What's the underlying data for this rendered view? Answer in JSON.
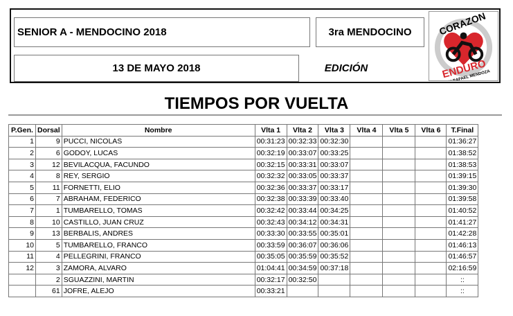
{
  "header": {
    "event": "SENIOR A - MENDOCINO 2018",
    "round": "3ra MENDOCINO",
    "date": "13 DE MAYO 2018",
    "edition_label": "EDICIÓN",
    "logo_text": "CORAZON ENDURO SAN RAFAEL MENDOZA"
  },
  "title": "TIEMPOS POR VUELTA",
  "table": {
    "columns": [
      "P.Gen.",
      "Dorsal",
      "Nombre",
      "Vlta 1",
      "Vlta 2",
      "Vlta 3",
      "Vlta 4",
      "Vlta 5",
      "Vlta 6",
      "T.Final"
    ],
    "rows": [
      [
        "1",
        "9",
        "PUCCI, NICOLAS",
        "00:31:23",
        "00:32:33",
        "00:32:30",
        "",
        "",
        "",
        "01:36:27"
      ],
      [
        "2",
        "6",
        "GODOY, LUCAS",
        "00:32:19",
        "00:33:07",
        "00:33:25",
        "",
        "",
        "",
        "01:38:52"
      ],
      [
        "3",
        "12",
        "BEVILACQUA, FACUNDO",
        "00:32:15",
        "00:33:31",
        "00:33:07",
        "",
        "",
        "",
        "01:38:53"
      ],
      [
        "4",
        "8",
        "REY, SERGIO",
        "00:32:32",
        "00:33:05",
        "00:33:37",
        "",
        "",
        "",
        "01:39:15"
      ],
      [
        "5",
        "11",
        "FORNETTI, ELIO",
        "00:32:36",
        "00:33:37",
        "00:33:17",
        "",
        "",
        "",
        "01:39:30"
      ],
      [
        "6",
        "7",
        "ABRAHAM, FEDERICO",
        "00:32:38",
        "00:33:39",
        "00:33:40",
        "",
        "",
        "",
        "01:39:58"
      ],
      [
        "7",
        "1",
        "TUMBARELLO, TOMAS",
        "00:32:42",
        "00:33:44",
        "00:34:25",
        "",
        "",
        "",
        "01:40:52"
      ],
      [
        "8",
        "10",
        "CASTILLO, JUAN CRUZ",
        "00:32:43",
        "00:34:12",
        "00:34:31",
        "",
        "",
        "",
        "01:41:27"
      ],
      [
        "9",
        "13",
        "BERBALIS, ANDRES",
        "00:33:30",
        "00:33:55",
        "00:35:01",
        "",
        "",
        "",
        "01:42:28"
      ],
      [
        "10",
        "5",
        "TUMBARELLO, FRANCO",
        "00:33:59",
        "00:36:07",
        "00:36:06",
        "",
        "",
        "",
        "01:46:13"
      ],
      [
        "11",
        "4",
        "PELLEGRINI, FRANCO",
        "00:35:05",
        "00:35:59",
        "00:35:52",
        "",
        "",
        "",
        "01:46:57"
      ],
      [
        "12",
        "3",
        "ZAMORA, ALVARO",
        "01:04:41",
        "00:34:59",
        "00:37:18",
        "",
        "",
        "",
        "02:16:59"
      ],
      [
        "",
        "2",
        "SGUAZZINI, MARTIN",
        "00:32:17",
        "00:32:50",
        "",
        "",
        "",
        "",
        "::"
      ],
      [
        "",
        "61",
        "JOFRE, ALEJO",
        "00:33:21",
        "",
        "",
        "",
        "",
        "",
        "::"
      ]
    ]
  }
}
